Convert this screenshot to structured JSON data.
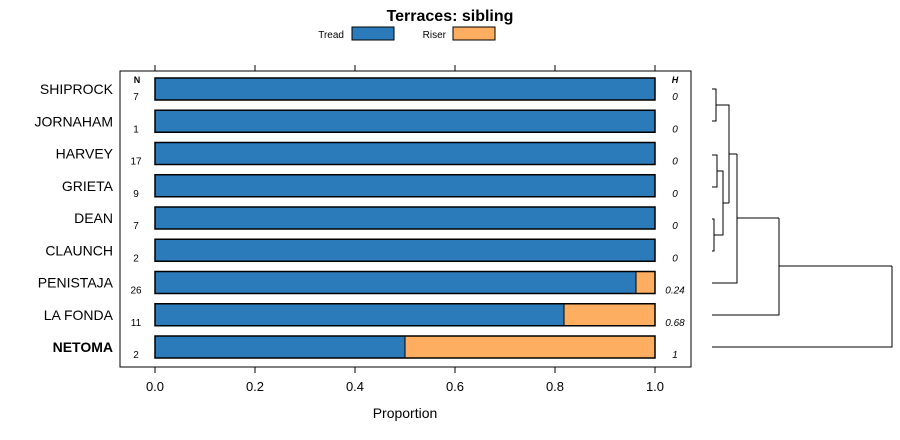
{
  "chart_data": {
    "type": "bar",
    "stacked": true,
    "orientation": "horizontal",
    "title": "Terraces: sibling",
    "xlabel": "Proportion",
    "xlim": [
      0,
      1
    ],
    "xticks": [
      "0.0",
      "0.2",
      "0.4",
      "0.6",
      "0.8",
      "1.0"
    ],
    "xtick_values": [
      0,
      0.2,
      0.4,
      0.6,
      0.8,
      1.0
    ],
    "legend_position": "top",
    "n_header": "N",
    "h_header": "H",
    "series": [
      {
        "name": "Tread",
        "color": "#2B7BBA"
      },
      {
        "name": "Riser",
        "color": "#FDAE61"
      }
    ],
    "categories": [
      {
        "label": "SHIPROCK",
        "n": "7",
        "tread": 1.0,
        "riser": 0.0,
        "h": "0",
        "bold": false
      },
      {
        "label": "JORNAHAM",
        "n": "1",
        "tread": 1.0,
        "riser": 0.0,
        "h": "0",
        "bold": false
      },
      {
        "label": "HARVEY",
        "n": "17",
        "tread": 1.0,
        "riser": 0.0,
        "h": "0",
        "bold": false
      },
      {
        "label": "GRIETA",
        "n": "9",
        "tread": 1.0,
        "riser": 0.0,
        "h": "0",
        "bold": false
      },
      {
        "label": "DEAN",
        "n": "7",
        "tread": 1.0,
        "riser": 0.0,
        "h": "0",
        "bold": false
      },
      {
        "label": "CLAUNCH",
        "n": "2",
        "tread": 1.0,
        "riser": 0.0,
        "h": "0",
        "bold": false
      },
      {
        "label": "PENISTAJA",
        "n": "26",
        "tread": 0.962,
        "riser": 0.038,
        "h": "0.24",
        "bold": false
      },
      {
        "label": "LA FONDA",
        "n": "11",
        "tread": 0.818,
        "riser": 0.182,
        "h": "0.68",
        "bold": false
      },
      {
        "label": "NETOMA",
        "n": "2",
        "tread": 0.5,
        "riser": 0.5,
        "h": "1",
        "bold": true
      }
    ]
  }
}
